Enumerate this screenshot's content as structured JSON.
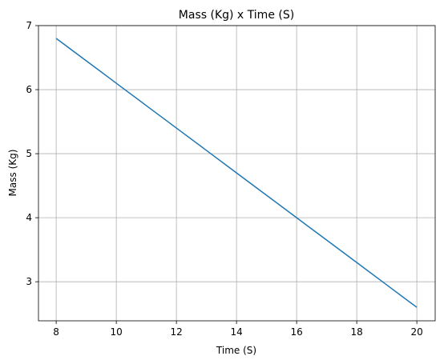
{
  "chart_data": {
    "type": "line",
    "title": "Mass (Kg) x Time (S)",
    "x_label": "Time (S)",
    "y_label": "Mass (Kg)",
    "x": [
      8,
      9,
      10,
      11,
      12,
      13,
      14,
      15,
      16,
      17,
      18,
      19,
      20
    ],
    "series": [
      {
        "color": "#1f77b4",
        "values": [
          6.8,
          6.45,
          6.1,
          5.75,
          5.4,
          5.05,
          4.7,
          4.35,
          4.0,
          3.65,
          3.3,
          2.95,
          2.6
        ]
      }
    ],
    "xlim": [
      7.41,
      20.61
    ],
    "ylim": [
      2.39,
      7
    ],
    "xticks": [
      8,
      10,
      12,
      14,
      16,
      18,
      20
    ],
    "yticks": [
      3,
      4,
      5,
      6,
      7
    ],
    "grid": true
  }
}
